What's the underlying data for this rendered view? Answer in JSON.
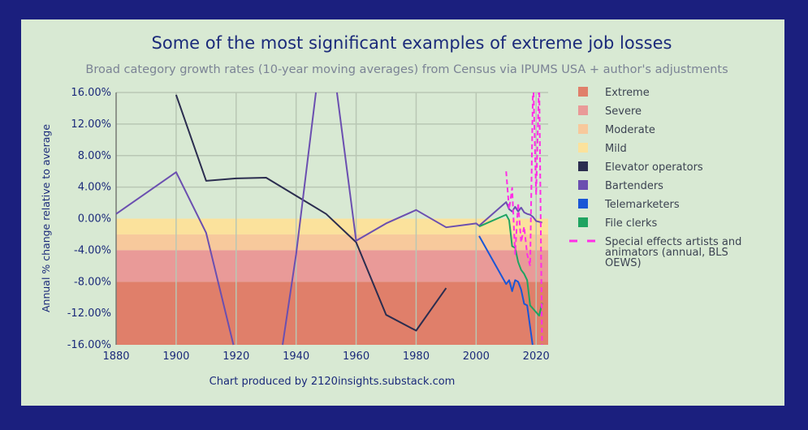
{
  "chart_data": {
    "type": "line",
    "title": "Some of the most significant examples of extreme job losses",
    "subtitle": "Broad category growth rates (10-year moving averages) from Census via IPUMS USA + author's adjustments",
    "ylabel": "Annual % change relative to average",
    "xlabel": "",
    "footer": "Chart produced by 2120insights.substack.com",
    "xlim": [
      1880,
      2024
    ],
    "ylim": [
      -16,
      16
    ],
    "xticks": [
      1880,
      1900,
      1920,
      1940,
      1960,
      1980,
      2000,
      2020
    ],
    "yticks": [
      16,
      12,
      8,
      4,
      0,
      -4,
      -8,
      -12,
      -16
    ],
    "ytick_labels": [
      "16.00%",
      "12.00%",
      "8.00%",
      "4.00%",
      "0.00%",
      "-4.00%",
      "-8.00%",
      "-12.00%",
      "-16.00%"
    ],
    "grid": true,
    "legend_position": "right",
    "bands": [
      {
        "name": "Extreme",
        "from": -16,
        "to": -8,
        "color": "#e07f6a"
      },
      {
        "name": "Severe",
        "from": -8,
        "to": -4,
        "color": "#e99a98"
      },
      {
        "name": "Moderate",
        "from": -4,
        "to": -2,
        "color": "#f7c99c"
      },
      {
        "name": "Mild",
        "from": -2,
        "to": 0,
        "color": "#fbe29c"
      }
    ],
    "series": [
      {
        "name": "Elevator operators",
        "color": "#2b2d4f",
        "dash": false,
        "x": [
          1900,
          1910,
          1920,
          1930,
          1950,
          1960,
          1970,
          1980,
          1990
        ],
        "y": [
          15.7,
          4.8,
          5.1,
          5.2,
          0.6,
          -3.0,
          -12.2,
          -14.2,
          -8.8
        ]
      },
      {
        "name": "Bartenders",
        "color": "#6b4fb0",
        "dash": false,
        "x": [
          1880,
          1900,
          1910,
          1920,
          1930,
          1940,
          1950,
          1960,
          1970,
          1980,
          1990,
          2000,
          2001,
          2010,
          2011,
          2012,
          2013,
          2014,
          2015,
          2016,
          2017,
          2018,
          2019,
          2020,
          2022
        ],
        "y": [
          0.6,
          5.9,
          -1.8,
          -17.4,
          -30,
          -4.5,
          26.6,
          -2.8,
          -0.6,
          1.1,
          -1.1,
          -0.6,
          -0.9,
          2.1,
          1.2,
          0.9,
          1.5,
          0.9,
          1.4,
          0.8,
          0.6,
          0.5,
          0.2,
          -0.3,
          -0.5
        ]
      },
      {
        "name": "Telemarketers",
        "color": "#1a56d6",
        "dash": false,
        "x": [
          2001,
          2010,
          2011,
          2012,
          2013,
          2014,
          2015,
          2016,
          2017,
          2019
        ],
        "y": [
          -2.2,
          -8.3,
          -7.8,
          -9.2,
          -7.8,
          -8.0,
          -9.0,
          -10.8,
          -11.0,
          -16.5
        ]
      },
      {
        "name": "File clerks",
        "color": "#1fa461",
        "dash": false,
        "x": [
          2001,
          2010,
          2011,
          2012,
          2013,
          2014,
          2015,
          2016,
          2017,
          2018,
          2021,
          2022
        ],
        "y": [
          -1.0,
          0.5,
          -0.2,
          -3.5,
          -3.7,
          -5.5,
          -6.5,
          -7.0,
          -7.8,
          -11.0,
          -12.3,
          -10.7
        ]
      },
      {
        "name": "Special effects artists and animators (annual, BLS OEWS)",
        "color": "#ff2ee6",
        "dash": true,
        "x": [
          2010,
          2011,
          2012,
          2013,
          2014,
          2015,
          2016,
          2017,
          2018,
          2019,
          2020,
          2021,
          2022
        ],
        "y": [
          6.0,
          1.2,
          3.9,
          -4.5,
          2.0,
          -3.0,
          -1.0,
          -4.5,
          -6.0,
          18,
          3,
          18,
          -17
        ]
      }
    ],
    "legend_labels": [
      "Extreme",
      "Severe",
      "Moderate",
      "Mild",
      "Elevator operators",
      "Bartenders",
      "Telemarketers",
      "File clerks",
      "Special effects artists and",
      "animators (annual, BLS",
      "OEWS)"
    ]
  }
}
